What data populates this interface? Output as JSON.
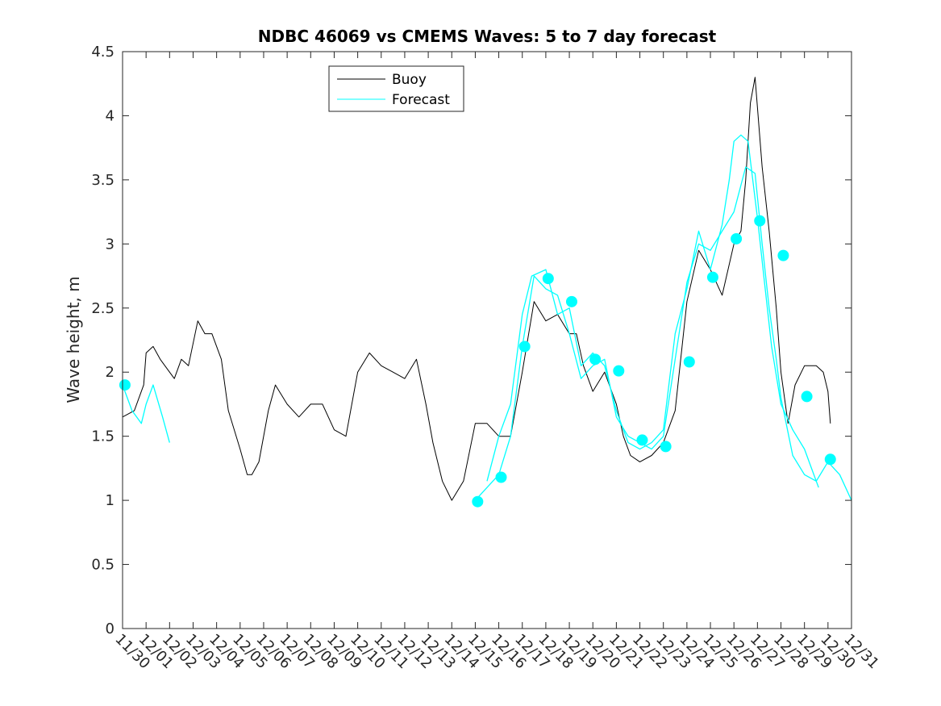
{
  "chart_data": {
    "type": "line",
    "title": "NDBC 46069 vs CMEMS Waves: 5 to 7 day forecast",
    "xlabel": "",
    "ylabel": "Wave height, m",
    "ylim": [
      0,
      4.5
    ],
    "yticks": [
      0,
      0.5,
      1,
      1.5,
      2,
      2.5,
      3,
      3.5,
      4,
      4.5
    ],
    "xlim": [
      0,
      31
    ],
    "xtick_labels": [
      "11/30",
      "12/01",
      "12/02",
      "12/03",
      "12/04",
      "12/05",
      "12/06",
      "12/07",
      "12/08",
      "12/09",
      "12/10",
      "12/11",
      "12/12",
      "12/13",
      "12/14",
      "12/15",
      "12/16",
      "12/17",
      "12/18",
      "12/19",
      "12/20",
      "12/21",
      "12/22",
      "12/23",
      "12/24",
      "12/25",
      "12/26",
      "12/27",
      "12/28",
      "12/29",
      "12/30",
      "12/31"
    ],
    "x_unit": "days since 11/30",
    "legend": {
      "placement": "top-center",
      "entries": [
        "Buoy",
        "Forecast"
      ]
    },
    "grid": false,
    "colors": {
      "buoy": "#000000",
      "forecast": "#00ffff"
    },
    "series": [
      {
        "name": "Buoy",
        "x": [
          0,
          0.5,
          0.9,
          1.0,
          1.3,
          1.6,
          2.0,
          2.2,
          2.5,
          2.8,
          3.2,
          3.5,
          3.8,
          4.2,
          4.5,
          5.0,
          5.3,
          5.5,
          5.8,
          6.2,
          6.5,
          7.0,
          7.5,
          8.0,
          8.5,
          9.0,
          9.5,
          10.0,
          10.5,
          11.0,
          11.5,
          12.0,
          12.5,
          12.9,
          13.2,
          13.6,
          14.0,
          14.5,
          15.0,
          15.5,
          16.0,
          16.5,
          17.0,
          17.5,
          18.0,
          18.5,
          19.0,
          19.3,
          19.6,
          20.0,
          20.5,
          21.0,
          21.3,
          21.6,
          22.0,
          22.5,
          23.0,
          23.5,
          24.0,
          24.5,
          25.0,
          25.5,
          26.0,
          26.3,
          26.5,
          26.7,
          26.9,
          27.2,
          27.5,
          27.8,
          28.0,
          28.3,
          28.6,
          29.0,
          29.5,
          29.8,
          30.0,
          30.1
        ],
        "y": [
          1.65,
          1.7,
          1.9,
          2.15,
          2.2,
          2.1,
          2.0,
          1.95,
          2.1,
          2.05,
          2.4,
          2.3,
          2.3,
          2.1,
          1.7,
          1.4,
          1.2,
          1.2,
          1.3,
          1.7,
          1.9,
          1.75,
          1.65,
          1.75,
          1.75,
          1.55,
          1.5,
          2.0,
          2.15,
          2.05,
          2.0,
          1.95,
          2.1,
          1.75,
          1.45,
          1.15,
          1.0,
          1.15,
          1.6,
          1.6,
          1.5,
          1.5,
          2.0,
          2.55,
          2.4,
          2.45,
          2.3,
          2.3,
          2.05,
          1.85,
          2.0,
          1.75,
          1.5,
          1.35,
          1.3,
          1.35,
          1.45,
          1.7,
          2.55,
          2.95,
          2.8,
          2.6,
          3.0,
          3.1,
          3.5,
          4.1,
          4.3,
          3.6,
          3.1,
          2.5,
          2.0,
          1.6,
          1.9,
          2.05,
          2.05,
          2.0,
          1.85,
          1.6
        ]
      },
      {
        "name": "Forecast",
        "x": [
          0,
          0.4,
          0.8,
          1.0,
          1.3,
          1.7,
          2.0
        ],
        "y": [
          1.9,
          1.7,
          1.6,
          1.75,
          1.9,
          1.65,
          1.45
        ]
      },
      {
        "name": "Forecast",
        "x": [
          15.0,
          15.5,
          16.0,
          16.5,
          17.0,
          17.5,
          18.0,
          18.5,
          19.0,
          19.5,
          20.0,
          20.5,
          21.0,
          21.5,
          22.0,
          22.5,
          23.0,
          23.5,
          24.0,
          24.5,
          25.0,
          25.5,
          26.0,
          26.5,
          26.9,
          27.2,
          27.5,
          27.8,
          28.0,
          28.5,
          29.0,
          29.5,
          30.0,
          30.5,
          31.0
        ],
        "y": [
          1.0,
          1.1,
          1.2,
          1.5,
          2.2,
          2.75,
          2.65,
          2.6,
          2.3,
          1.95,
          2.05,
          2.1,
          1.65,
          1.5,
          1.45,
          1.4,
          1.5,
          2.1,
          2.7,
          3.0,
          2.95,
          3.1,
          3.25,
          3.6,
          3.55,
          3.0,
          2.5,
          2.1,
          1.8,
          1.35,
          1.2,
          1.15,
          1.3,
          1.2,
          1.0
        ]
      },
      {
        "name": "Forecast",
        "x": [
          15.5,
          16.0,
          16.5,
          17.0,
          17.4,
          18.0,
          18.5,
          19.0,
          19.5,
          20.0,
          20.5,
          21.0,
          21.5,
          22.0,
          22.5,
          23.0,
          23.5,
          24.0,
          24.5,
          25.0,
          25.5,
          25.8,
          26.0,
          26.3,
          26.6,
          27.0,
          27.3,
          27.6,
          28.0,
          28.5,
          29.0,
          29.3,
          29.6
        ],
        "y": [
          1.15,
          1.5,
          1.75,
          2.45,
          2.75,
          2.8,
          2.45,
          2.5,
          2.05,
          2.15,
          2.05,
          1.7,
          1.45,
          1.4,
          1.45,
          1.55,
          2.3,
          2.65,
          3.1,
          2.8,
          3.15,
          3.5,
          3.8,
          3.85,
          3.8,
          3.2,
          2.7,
          2.2,
          1.75,
          1.55,
          1.4,
          1.25,
          1.1
        ]
      }
    ],
    "markers": {
      "name": "Forecast",
      "x": [
        0.1,
        15.1,
        16.1,
        17.1,
        18.1,
        19.1,
        20.1,
        21.1,
        22.1,
        23.1,
        24.1,
        25.1,
        26.1,
        27.1,
        28.1,
        29.1,
        30.1
      ],
      "y": [
        1.9,
        0.99,
        1.18,
        2.2,
        2.73,
        2.55,
        2.1,
        2.01,
        1.47,
        1.42,
        2.08,
        2.74,
        3.04,
        3.18,
        2.91,
        1.81,
        1.32
      ]
    }
  }
}
